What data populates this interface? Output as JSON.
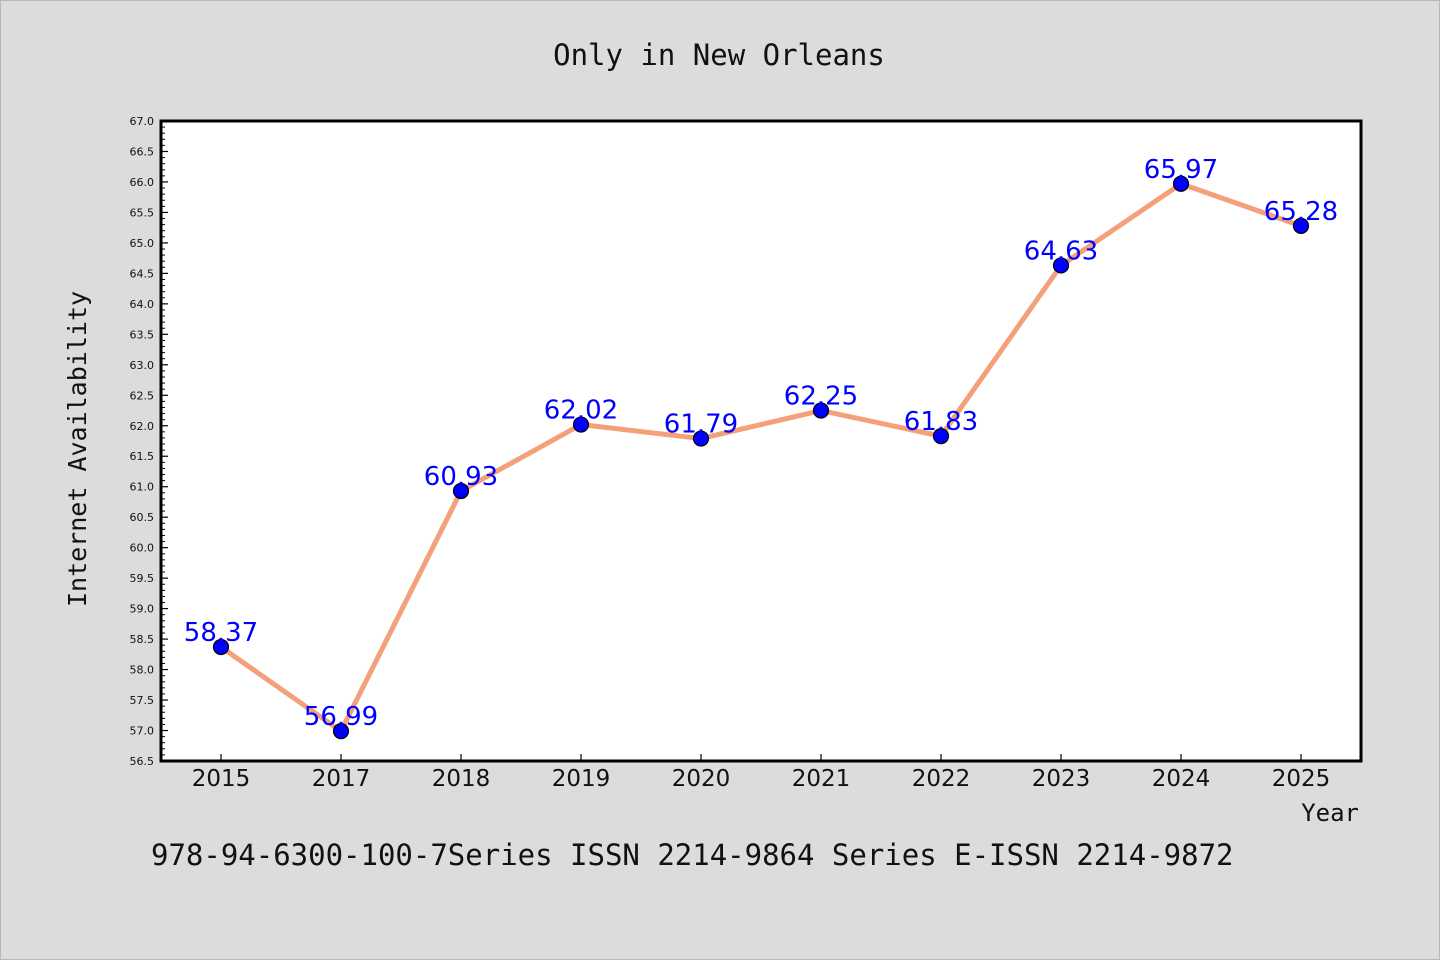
{
  "chart_data": {
    "type": "line",
    "title": "Only in New Orleans",
    "xlabel": "Year",
    "ylabel": "Internet Availability",
    "categories": [
      "2015",
      "2017",
      "2018",
      "2019",
      "2020",
      "2021",
      "2022",
      "2023",
      "2024",
      "2025"
    ],
    "series": [
      {
        "values": [
          58.37,
          56.99,
          60.93,
          62.02,
          61.79,
          62.25,
          61.83,
          64.63,
          65.97,
          65.28
        ],
        "line_color": "#f4a07a",
        "marker_color": "#0000ff"
      }
    ],
    "data_labels": [
      "58.37",
      "56.99",
      "60.93",
      "62.02",
      "61.79",
      "62.25",
      "61.83",
      "64.63",
      "65.97",
      "65.28"
    ],
    "ylim": [
      56.5,
      67.0
    ],
    "ytick_step": 0.5,
    "grid": false,
    "legend": "none"
  },
  "footer": {
    "text": "978-94-6300-100-7Series ISSN 2214-9864 Series E-ISSN 2214-9872"
  },
  "colors": {
    "background": "#dcdcdc",
    "plot_area": "#ffffff",
    "axis": "#000000"
  }
}
